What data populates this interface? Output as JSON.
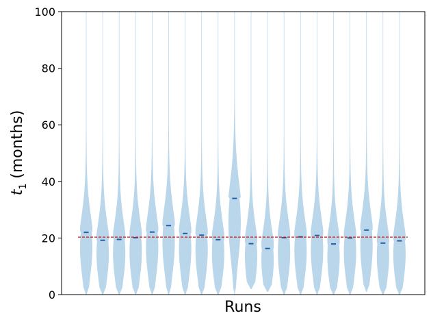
{
  "chart_data": {
    "type": "violin",
    "title": "",
    "xlabel": "Runs",
    "ylabel_var": "t",
    "ylabel_sub": "1",
    "ylabel_rest": " (months)",
    "ylim": [
      0,
      100
    ],
    "yticks": [
      0,
      20,
      40,
      60,
      80,
      100
    ],
    "grid": false,
    "legend": "none",
    "reference_line": {
      "y": 20.3,
      "color": "#dd1111",
      "style": "dashed"
    },
    "violin_color": "#b9d6ea",
    "median_color": "#1f5fa8",
    "runs": [
      {
        "median": 22.0,
        "min": 0,
        "max": 100
      },
      {
        "median": 19.2,
        "min": 0,
        "max": 100
      },
      {
        "median": 19.5,
        "min": 0,
        "max": 100
      },
      {
        "median": 20.1,
        "min": 0,
        "max": 100
      },
      {
        "median": 22.1,
        "min": 0,
        "max": 100
      },
      {
        "median": 24.4,
        "min": 0,
        "max": 100
      },
      {
        "median": 21.6,
        "min": 0,
        "max": 100
      },
      {
        "median": 21.0,
        "min": 0,
        "max": 100
      },
      {
        "median": 19.4,
        "min": 0,
        "max": 100
      },
      {
        "median": 34.0,
        "min": 0,
        "max": 100
      },
      {
        "median": 18.0,
        "min": 2,
        "max": 100
      },
      {
        "median": 16.3,
        "min": 1,
        "max": 100
      },
      {
        "median": 20.1,
        "min": 0,
        "max": 100
      },
      {
        "median": 20.4,
        "min": 0,
        "max": 100
      },
      {
        "median": 20.9,
        "min": 0,
        "max": 100
      },
      {
        "median": 17.9,
        "min": 0,
        "max": 100
      },
      {
        "median": 20.0,
        "min": 0,
        "max": 100
      },
      {
        "median": 22.8,
        "min": 1,
        "max": 100
      },
      {
        "median": 18.2,
        "min": 0,
        "max": 100
      },
      {
        "median": 19.0,
        "min": 0,
        "max": 100
      }
    ]
  }
}
